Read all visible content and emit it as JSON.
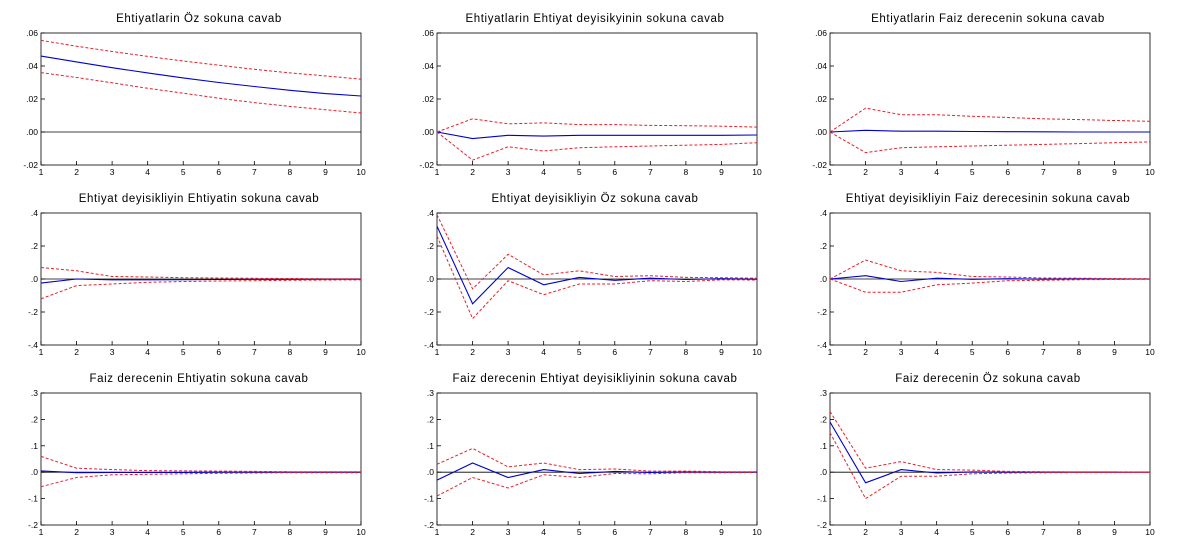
{
  "chart_data": [
    {
      "type": "line",
      "title": "Ehtiyatlarin Öz sokuna cavab",
      "x": [
        "1",
        "2",
        "3",
        "4",
        "5",
        "6",
        "7",
        "8",
        "9",
        "10"
      ],
      "ylim": [
        -0.02,
        0.06
      ],
      "yticks": [
        ".06",
        ".04",
        ".02",
        ".00",
        "-.02"
      ],
      "ytick_values": [
        0.06,
        0.04,
        0.02,
        0,
        -0.02
      ],
      "zero_line": true,
      "series": [
        {
          "role": "response",
          "color": "#0000cc",
          "values": [
            0.046,
            0.0425,
            0.039,
            0.0358,
            0.0328,
            0.03,
            0.0276,
            0.0253,
            0.0233,
            0.0218
          ]
        },
        {
          "role": "upper band",
          "color": "#e8202a",
          "values": [
            0.0555,
            0.052,
            0.0488,
            0.0458,
            0.043,
            0.0405,
            0.038,
            0.0358,
            0.034,
            0.032
          ]
        },
        {
          "role": "lower band",
          "color": "#e8202a",
          "values": [
            0.036,
            0.033,
            0.0298,
            0.0265,
            0.0235,
            0.0205,
            0.0178,
            0.0155,
            0.0135,
            0.0115
          ]
        }
      ]
    },
    {
      "type": "line",
      "title": "Ehtiyatlarin Ehtiyat deyisikyinin sokuna cavab",
      "x": [
        "1",
        "2",
        "3",
        "4",
        "5",
        "6",
        "7",
        "8",
        "9",
        "10"
      ],
      "ylim": [
        -0.02,
        0.06
      ],
      "yticks": [
        ".06",
        ".04",
        ".02",
        ".00",
        "-.02"
      ],
      "ytick_values": [
        0.06,
        0.04,
        0.02,
        0,
        -0.02
      ],
      "zero_line": false,
      "series": [
        {
          "role": "response",
          "color": "#0000cc",
          "values": [
            0,
            -0.004,
            -0.002,
            -0.0025,
            -0.002,
            -0.002,
            -0.002,
            -0.002,
            -0.002,
            -0.0018
          ]
        },
        {
          "role": "upper band",
          "color": "#e8202a",
          "values": [
            0,
            0.008,
            0.005,
            0.0055,
            0.0045,
            0.0045,
            0.004,
            0.0038,
            0.0035,
            0.003
          ]
        },
        {
          "role": "lower band",
          "color": "#e8202a",
          "values": [
            0,
            -0.017,
            -0.009,
            -0.0115,
            -0.0095,
            -0.009,
            -0.0085,
            -0.008,
            -0.0075,
            -0.0065
          ]
        }
      ]
    },
    {
      "type": "line",
      "title": "Ehtiyatlarin Faiz derecenin sokuna cavab",
      "x": [
        "1",
        "2",
        "3",
        "4",
        "5",
        "6",
        "7",
        "8",
        "9",
        "10"
      ],
      "ylim": [
        -0.02,
        0.06
      ],
      "yticks": [
        ".06",
        ".04",
        ".02",
        ".00",
        "-.02"
      ],
      "ytick_values": [
        0.06,
        0.04,
        0.02,
        0,
        -0.02
      ],
      "zero_line": false,
      "series": [
        {
          "role": "response",
          "color": "#0000cc",
          "values": [
            0,
            0.001,
            0.0005,
            0.0005,
            0.0003,
            0.0002,
            0.0001,
            0,
            0,
            0
          ]
        },
        {
          "role": "upper band",
          "color": "#e8202a",
          "values": [
            0,
            0.0145,
            0.0105,
            0.0105,
            0.0095,
            0.0088,
            0.008,
            0.0075,
            0.007,
            0.0065
          ]
        },
        {
          "role": "lower band",
          "color": "#e8202a",
          "values": [
            0,
            -0.0125,
            -0.0095,
            -0.009,
            -0.0085,
            -0.008,
            -0.0075,
            -0.007,
            -0.0065,
            -0.006
          ]
        }
      ]
    },
    {
      "type": "line",
      "title": "Ehtiyat deyisikliyin Ehtiyatin sokuna cavab",
      "x": [
        "1",
        "2",
        "3",
        "4",
        "5",
        "6",
        "7",
        "8",
        "9",
        "10"
      ],
      "ylim": [
        -0.4,
        0.4
      ],
      "yticks": [
        ".4",
        ".2",
        ".0",
        "-.2",
        "-.4"
      ],
      "ytick_values": [
        0.4,
        0.2,
        0,
        -0.2,
        -0.4
      ],
      "zero_line": true,
      "series": [
        {
          "role": "response",
          "color": "#0000cc",
          "values": [
            -0.025,
            0,
            -0.005,
            -0.005,
            -0.004,
            -0.003,
            -0.002,
            -0.002,
            -0.001,
            -0.001
          ]
        },
        {
          "role": "upper band",
          "color": "#e8202a",
          "values": [
            0.07,
            0.05,
            0.015,
            0.012,
            0.008,
            0.006,
            0.004,
            0.003,
            0.002,
            0.002
          ]
        },
        {
          "role": "lower band",
          "color": "#e8202a",
          "values": [
            -0.12,
            -0.04,
            -0.03,
            -0.02,
            -0.015,
            -0.012,
            -0.01,
            -0.008,
            -0.006,
            -0.005
          ]
        }
      ]
    },
    {
      "type": "line",
      "title": "Ehtiyat deyisikliyin Öz sokuna cavab",
      "x": [
        "1",
        "2",
        "3",
        "4",
        "5",
        "6",
        "7",
        "8",
        "9",
        "10"
      ],
      "ylim": [
        -0.4,
        0.4
      ],
      "yticks": [
        ".4",
        ".2",
        ".0",
        "-.2",
        "-.4"
      ],
      "ytick_values": [
        0.4,
        0.2,
        0,
        -0.2,
        -0.4
      ],
      "zero_line": true,
      "series": [
        {
          "role": "response",
          "color": "#0000cc",
          "values": [
            0.32,
            -0.15,
            0.07,
            -0.035,
            0.01,
            -0.008,
            0.005,
            -0.003,
            0.002,
            -0.001
          ]
        },
        {
          "role": "upper band",
          "color": "#e8202a",
          "values": [
            0.39,
            -0.06,
            0.15,
            0.025,
            0.05,
            0.015,
            0.02,
            0.01,
            0.008,
            0.005
          ]
        },
        {
          "role": "lower band",
          "color": "#e8202a",
          "values": [
            0.26,
            -0.24,
            -0.01,
            -0.095,
            -0.03,
            -0.03,
            -0.01,
            -0.015,
            -0.005,
            -0.006
          ]
        }
      ]
    },
    {
      "type": "line",
      "title": "Ehtiyat deyisikliyin Faiz derecesinin sokuna cavab",
      "x": [
        "1",
        "2",
        "3",
        "4",
        "5",
        "6",
        "7",
        "8",
        "9",
        "10"
      ],
      "ylim": [
        -0.4,
        0.4
      ],
      "yticks": [
        ".4",
        ".2",
        ".0",
        "-.2",
        "-.4"
      ],
      "ytick_values": [
        0.4,
        0.2,
        0,
        -0.2,
        -0.4
      ],
      "zero_line": true,
      "series": [
        {
          "role": "response",
          "color": "#0000cc",
          "values": [
            0,
            0.02,
            -0.015,
            0.005,
            -0.002,
            0.002,
            -0.001,
            0.001,
            0,
            0
          ]
        },
        {
          "role": "upper band",
          "color": "#e8202a",
          "values": [
            0,
            0.115,
            0.05,
            0.04,
            0.015,
            0.012,
            0.006,
            0.005,
            0.003,
            0.002
          ]
        },
        {
          "role": "lower band",
          "color": "#e8202a",
          "values": [
            0,
            -0.08,
            -0.08,
            -0.035,
            -0.025,
            -0.01,
            -0.008,
            -0.004,
            -0.003,
            -0.002
          ]
        }
      ]
    },
    {
      "type": "line",
      "title": "Faiz derecenin Ehtiyatin sokuna cavab",
      "x": [
        "1",
        "2",
        "3",
        "4",
        "5",
        "6",
        "7",
        "8",
        "9",
        "10"
      ],
      "ylim": [
        -0.2,
        0.3
      ],
      "yticks": [
        ".3",
        ".2",
        ".1",
        ".0",
        "-.1",
        "-.2"
      ],
      "ytick_values": [
        0.3,
        0.2,
        0.1,
        0,
        -0.1,
        -0.2
      ],
      "zero_line": true,
      "series": [
        {
          "role": "response",
          "color": "#0000cc",
          "values": [
            0.005,
            -0.002,
            -0.001,
            -0.001,
            -0.001,
            0,
            0,
            0,
            0,
            0
          ]
        },
        {
          "role": "upper band",
          "color": "#e8202a",
          "values": [
            0.06,
            0.015,
            0.01,
            0.006,
            0.005,
            0.004,
            0.003,
            0.002,
            0.002,
            0.002
          ]
        },
        {
          "role": "lower band",
          "color": "#e8202a",
          "values": [
            -0.055,
            -0.02,
            -0.01,
            -0.008,
            -0.006,
            -0.004,
            -0.003,
            -0.002,
            -0.002,
            -0.002
          ]
        }
      ]
    },
    {
      "type": "line",
      "title": "Faiz derecenin Ehtiyat deyisikliyinin sokuna cavab",
      "x": [
        "1",
        "2",
        "3",
        "4",
        "5",
        "6",
        "7",
        "8",
        "9",
        "10"
      ],
      "ylim": [
        -0.2,
        0.3
      ],
      "yticks": [
        ".3",
        ".2",
        ".1",
        ".0",
        "-.1",
        "-.2"
      ],
      "ytick_values": [
        0.3,
        0.2,
        0.1,
        0,
        -0.1,
        -0.2
      ],
      "zero_line": true,
      "series": [
        {
          "role": "response",
          "color": "#0000cc",
          "values": [
            -0.03,
            0.035,
            -0.02,
            0.01,
            -0.005,
            0.003,
            -0.001,
            0.001,
            0,
            0
          ]
        },
        {
          "role": "upper band",
          "color": "#e8202a",
          "values": [
            0.03,
            0.09,
            0.02,
            0.035,
            0.01,
            0.012,
            0.004,
            0.004,
            0.002,
            0.002
          ]
        },
        {
          "role": "lower band",
          "color": "#e8202a",
          "values": [
            -0.09,
            -0.02,
            -0.06,
            -0.01,
            -0.02,
            -0.005,
            -0.006,
            -0.002,
            -0.002,
            -0.001
          ]
        }
      ]
    },
    {
      "type": "line",
      "title": "Faiz derecenin Öz sokuna cavab",
      "x": [
        "1",
        "2",
        "3",
        "4",
        "5",
        "6",
        "7",
        "8",
        "9",
        "10"
      ],
      "ylim": [
        -0.2,
        0.3
      ],
      "yticks": [
        ".3",
        ".2",
        ".1",
        ".0",
        "-.1",
        "-.2"
      ],
      "ytick_values": [
        0.3,
        0.2,
        0.1,
        0,
        -0.1,
        -0.2
      ],
      "zero_line": true,
      "series": [
        {
          "role": "response",
          "color": "#0000cc",
          "values": [
            0.19,
            -0.04,
            0.01,
            -0.003,
            0.001,
            0,
            0,
            0,
            0,
            0
          ]
        },
        {
          "role": "upper band",
          "color": "#e8202a",
          "values": [
            0.23,
            0.015,
            0.04,
            0.01,
            0.008,
            0.003,
            0.002,
            0.001,
            0.001,
            0
          ]
        },
        {
          "role": "lower band",
          "color": "#e8202a",
          "values": [
            0.15,
            -0.1,
            -0.015,
            -0.015,
            -0.006,
            -0.003,
            -0.002,
            -0.001,
            -0.001,
            0
          ]
        }
      ]
    }
  ]
}
